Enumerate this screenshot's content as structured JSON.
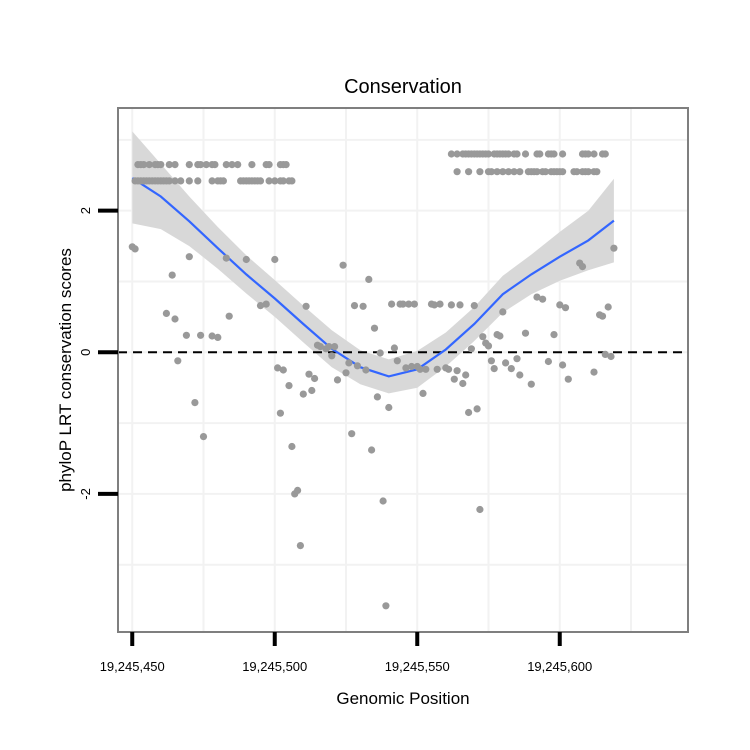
{
  "chart_data": {
    "type": "scatter",
    "title": "Conservation",
    "xlabel": "Genomic Position",
    "ylabel": "phyloP LRT conservation scores",
    "xlim": [
      19245445,
      19245645
    ],
    "ylim": [
      -3.95,
      3.45
    ],
    "x_ticks": [
      19245450,
      19245500,
      19245550,
      19245600
    ],
    "x_tick_labels": [
      "19,245,450",
      "19,245,500",
      "19,245,550",
      "19,245,600"
    ],
    "y_ticks": [
      -2,
      0,
      2
    ],
    "y_tick_labels": [
      "-2",
      "0",
      "2"
    ],
    "reference_line": 0,
    "colors": {
      "points": "#999999",
      "smooth": "#3366FF",
      "band": "#d6d6d6",
      "frame": "#7f7f7f",
      "grid": "#f2f2f2",
      "refline": "#000000"
    },
    "points": [
      [
        19245450,
        1.49
      ],
      [
        19245451,
        1.46
      ],
      [
        19245452,
        2.65
      ],
      [
        19245453,
        2.65
      ],
      [
        19245454,
        2.65
      ],
      [
        19245456,
        2.65
      ],
      [
        19245458,
        2.65
      ],
      [
        19245459,
        2.65
      ],
      [
        19245460,
        2.65
      ],
      [
        19245463,
        2.65
      ],
      [
        19245465,
        2.65
      ],
      [
        19245470,
        2.65
      ],
      [
        19245473,
        2.65
      ],
      [
        19245474,
        2.65
      ],
      [
        19245476,
        2.65
      ],
      [
        19245478,
        2.65
      ],
      [
        19245479,
        2.65
      ],
      [
        19245483,
        2.65
      ],
      [
        19245485,
        2.65
      ],
      [
        19245487,
        2.65
      ],
      [
        19245492,
        2.65
      ],
      [
        19245497,
        2.65
      ],
      [
        19245498,
        2.65
      ],
      [
        19245502,
        2.65
      ],
      [
        19245503,
        2.65
      ],
      [
        19245504,
        2.65
      ],
      [
        19245451,
        2.42
      ],
      [
        19245452,
        2.42
      ],
      [
        19245453,
        2.42
      ],
      [
        19245454,
        2.42
      ],
      [
        19245455,
        2.42
      ],
      [
        19245456,
        2.42
      ],
      [
        19245457,
        2.42
      ],
      [
        19245458,
        2.42
      ],
      [
        19245459,
        2.42
      ],
      [
        19245460,
        2.42
      ],
      [
        19245461,
        2.42
      ],
      [
        19245462,
        2.42
      ],
      [
        19245463,
        2.42
      ],
      [
        19245465,
        2.42
      ],
      [
        19245467,
        2.42
      ],
      [
        19245470,
        2.42
      ],
      [
        19245473,
        2.42
      ],
      [
        19245478,
        2.42
      ],
      [
        19245480,
        2.42
      ],
      [
        19245481,
        2.42
      ],
      [
        19245482,
        2.42
      ],
      [
        19245488,
        2.42
      ],
      [
        19245489,
        2.42
      ],
      [
        19245490,
        2.42
      ],
      [
        19245491,
        2.42
      ],
      [
        19245492,
        2.42
      ],
      [
        19245493,
        2.42
      ],
      [
        19245494,
        2.42
      ],
      [
        19245495,
        2.42
      ],
      [
        19245498,
        2.42
      ],
      [
        19245500,
        2.42
      ],
      [
        19245502,
        2.42
      ],
      [
        19245503,
        2.42
      ],
      [
        19245505,
        2.42
      ],
      [
        19245506,
        2.42
      ],
      [
        19245464,
        1.09
      ],
      [
        19245462,
        0.55
      ],
      [
        19245465,
        0.47
      ],
      [
        19245466,
        -0.12
      ],
      [
        19245470,
        1.35
      ],
      [
        19245469,
        0.24
      ],
      [
        19245472,
        -0.71
      ],
      [
        19245475,
        -1.19
      ],
      [
        19245474,
        0.24
      ],
      [
        19245478,
        0.23
      ],
      [
        19245480,
        0.21
      ],
      [
        19245483,
        1.33
      ],
      [
        19245484,
        0.51
      ],
      [
        19245490,
        1.31
      ],
      [
        19245495,
        0.66
      ],
      [
        19245497,
        0.68
      ],
      [
        19245500,
        1.31
      ],
      [
        19245501,
        -0.22
      ],
      [
        19245502,
        -0.86
      ],
      [
        19245503,
        -0.25
      ],
      [
        19245505,
        -0.47
      ],
      [
        19245506,
        -1.33
      ],
      [
        19245507,
        -2.0
      ],
      [
        19245508,
        -1.95
      ],
      [
        19245509,
        -2.73
      ],
      [
        19245510,
        -0.59
      ],
      [
        19245511,
        0.65
      ],
      [
        19245512,
        -0.31
      ],
      [
        19245513,
        -0.54
      ],
      [
        19245514,
        -0.37
      ],
      [
        19245515,
        0.1
      ],
      [
        19245516,
        0.08
      ],
      [
        19245518,
        0.05
      ],
      [
        19245519,
        0.08
      ],
      [
        19245520,
        -0.05
      ],
      [
        19245521,
        0.08
      ],
      [
        19245522,
        -0.39
      ],
      [
        19245524,
        1.23
      ],
      [
        19245525,
        -0.29
      ],
      [
        19245526,
        -0.15
      ],
      [
        19245527,
        -1.15
      ],
      [
        19245528,
        0.66
      ],
      [
        19245529,
        -0.19
      ],
      [
        19245531,
        0.65
      ],
      [
        19245532,
        -0.25
      ],
      [
        19245533,
        1.03
      ],
      [
        19245534,
        -1.38
      ],
      [
        19245535,
        0.34
      ],
      [
        19245536,
        -0.63
      ],
      [
        19245537,
        -0.01
      ],
      [
        19245538,
        -2.1
      ],
      [
        19245539,
        -3.58
      ],
      [
        19245540,
        -0.78
      ],
      [
        19245541,
        0.68
      ],
      [
        19245542,
        0.06
      ],
      [
        19245543,
        -0.12
      ],
      [
        19245544,
        0.68
      ],
      [
        19245545,
        0.68
      ],
      [
        19245546,
        -0.22
      ],
      [
        19245547,
        0.68
      ],
      [
        19245548,
        -0.2
      ],
      [
        19245549,
        0.68
      ],
      [
        19245550,
        -0.2
      ],
      [
        19245551,
        -0.24
      ],
      [
        19245552,
        -0.58
      ],
      [
        19245553,
        -0.24
      ],
      [
        19245555,
        0.68
      ],
      [
        19245556,
        0.67
      ],
      [
        19245557,
        -0.24
      ],
      [
        19245558,
        0.68
      ],
      [
        19245560,
        -0.22
      ],
      [
        19245561,
        -0.24
      ],
      [
        19245562,
        0.67
      ],
      [
        19245563,
        -0.38
      ],
      [
        19245564,
        -0.26
      ],
      [
        19245565,
        0.67
      ],
      [
        19245566,
        -0.44
      ],
      [
        19245567,
        -0.32
      ],
      [
        19245568,
        -0.85
      ],
      [
        19245569,
        0.05
      ],
      [
        19245570,
        0.66
      ],
      [
        19245571,
        -0.8
      ],
      [
        19245572,
        -2.22
      ],
      [
        19245573,
        0.22
      ],
      [
        19245574,
        0.13
      ],
      [
        19245575,
        0.09
      ],
      [
        19245576,
        -0.12
      ],
      [
        19245577,
        -0.23
      ],
      [
        19245578,
        0.25
      ],
      [
        19245579,
        0.23
      ],
      [
        19245580,
        0.57
      ],
      [
        19245581,
        -0.15
      ],
      [
        19245583,
        -0.23
      ],
      [
        19245585,
        -0.09
      ],
      [
        19245586,
        -0.32
      ],
      [
        19245588,
        0.27
      ],
      [
        19245590,
        -0.45
      ],
      [
        19245592,
        0.78
      ],
      [
        19245594,
        0.75
      ],
      [
        19245596,
        -0.13
      ],
      [
        19245598,
        0.25
      ],
      [
        19245600,
        0.67
      ],
      [
        19245601,
        -0.18
      ],
      [
        19245602,
        0.63
      ],
      [
        19245603,
        -0.38
      ],
      [
        19245607,
        1.26
      ],
      [
        19245608,
        1.21
      ],
      [
        19245612,
        -0.28
      ],
      [
        19245614,
        0.53
      ],
      [
        19245615,
        0.51
      ],
      [
        19245616,
        -0.03
      ],
      [
        19245617,
        0.64
      ],
      [
        19245618,
        -0.06
      ],
      [
        19245619,
        1.47
      ],
      [
        19245562,
        2.8
      ],
      [
        19245564,
        2.8
      ],
      [
        19245566,
        2.8
      ],
      [
        19245567,
        2.8
      ],
      [
        19245568,
        2.8
      ],
      [
        19245569,
        2.8
      ],
      [
        19245570,
        2.8
      ],
      [
        19245571,
        2.8
      ],
      [
        19245572,
        2.8
      ],
      [
        19245573,
        2.8
      ],
      [
        19245574,
        2.8
      ],
      [
        19245575,
        2.8
      ],
      [
        19245577,
        2.8
      ],
      [
        19245578,
        2.8
      ],
      [
        19245579,
        2.8
      ],
      [
        19245580,
        2.8
      ],
      [
        19245581,
        2.8
      ],
      [
        19245582,
        2.8
      ],
      [
        19245584,
        2.8
      ],
      [
        19245585,
        2.8
      ],
      [
        19245588,
        2.8
      ],
      [
        19245592,
        2.8
      ],
      [
        19245593,
        2.8
      ],
      [
        19245596,
        2.8
      ],
      [
        19245597,
        2.8
      ],
      [
        19245598,
        2.8
      ],
      [
        19245601,
        2.8
      ],
      [
        19245608,
        2.8
      ],
      [
        19245609,
        2.8
      ],
      [
        19245610,
        2.8
      ],
      [
        19245612,
        2.8
      ],
      [
        19245615,
        2.8
      ],
      [
        19245616,
        2.8
      ],
      [
        19245564,
        2.55
      ],
      [
        19245568,
        2.55
      ],
      [
        19245572,
        2.55
      ],
      [
        19245575,
        2.55
      ],
      [
        19245576,
        2.55
      ],
      [
        19245578,
        2.55
      ],
      [
        19245580,
        2.55
      ],
      [
        19245582,
        2.55
      ],
      [
        19245584,
        2.55
      ],
      [
        19245586,
        2.55
      ],
      [
        19245589,
        2.55
      ],
      [
        19245590,
        2.55
      ],
      [
        19245591,
        2.55
      ],
      [
        19245592,
        2.55
      ],
      [
        19245594,
        2.55
      ],
      [
        19245595,
        2.55
      ],
      [
        19245597,
        2.55
      ],
      [
        19245598,
        2.55
      ],
      [
        19245599,
        2.55
      ],
      [
        19245600,
        2.55
      ],
      [
        19245601,
        2.55
      ],
      [
        19245605,
        2.55
      ],
      [
        19245606,
        2.55
      ],
      [
        19245608,
        2.55
      ],
      [
        19245609,
        2.55
      ],
      [
        19245610,
        2.55
      ],
      [
        19245612,
        2.55
      ],
      [
        19245613,
        2.55
      ]
    ],
    "smooth": [
      [
        19245450,
        2.46
      ],
      [
        19245460,
        2.2
      ],
      [
        19245470,
        1.85
      ],
      [
        19245480,
        1.47
      ],
      [
        19245490,
        1.1
      ],
      [
        19245500,
        0.76
      ],
      [
        19245510,
        0.4
      ],
      [
        19245520,
        0.05
      ],
      [
        19245530,
        -0.21
      ],
      [
        19245540,
        -0.34
      ],
      [
        19245550,
        -0.24
      ],
      [
        19245560,
        0.04
      ],
      [
        19245570,
        0.4
      ],
      [
        19245580,
        0.82
      ],
      [
        19245590,
        1.1
      ],
      [
        19245600,
        1.35
      ],
      [
        19245610,
        1.58
      ],
      [
        19245619,
        1.86
      ]
    ],
    "band_upper": [
      [
        19245450,
        3.12
      ],
      [
        19245460,
        2.66
      ],
      [
        19245470,
        2.2
      ],
      [
        19245480,
        1.77
      ],
      [
        19245490,
        1.37
      ],
      [
        19245500,
        1.02
      ],
      [
        19245510,
        0.66
      ],
      [
        19245520,
        0.31
      ],
      [
        19245530,
        0.03
      ],
      [
        19245540,
        -0.1
      ],
      [
        19245550,
        0.02
      ],
      [
        19245560,
        0.28
      ],
      [
        19245570,
        0.64
      ],
      [
        19245580,
        1.08
      ],
      [
        19245590,
        1.38
      ],
      [
        19245600,
        1.7
      ],
      [
        19245610,
        2.0
      ],
      [
        19245619,
        2.45
      ]
    ],
    "band_lower": [
      [
        19245450,
        1.82
      ],
      [
        19245460,
        1.74
      ],
      [
        19245470,
        1.5
      ],
      [
        19245480,
        1.18
      ],
      [
        19245490,
        0.83
      ],
      [
        19245500,
        0.5
      ],
      [
        19245510,
        0.14
      ],
      [
        19245520,
        -0.21
      ],
      [
        19245530,
        -0.45
      ],
      [
        19245540,
        -0.58
      ],
      [
        19245550,
        -0.5
      ],
      [
        19245560,
        -0.2
      ],
      [
        19245570,
        0.16
      ],
      [
        19245580,
        0.56
      ],
      [
        19245590,
        0.82
      ],
      [
        19245600,
        1.01
      ],
      [
        19245610,
        1.16
      ],
      [
        19245619,
        1.27
      ]
    ]
  }
}
